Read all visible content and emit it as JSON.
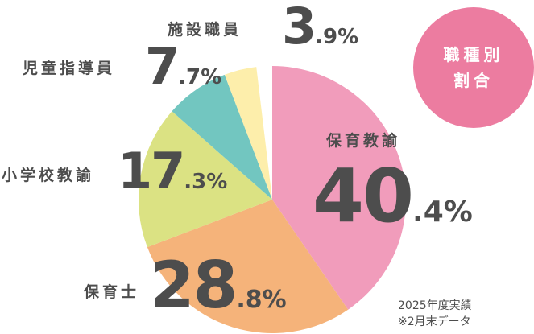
{
  "chart_data": {
    "type": "pie",
    "title": "職種別割合",
    "start": "top, clockwise",
    "slices": [
      {
        "name": "保育教諭",
        "value": 40.4,
        "color": "#f19cbb"
      },
      {
        "name": "保育士",
        "value": 28.8,
        "color": "#f5b37a"
      },
      {
        "name": "小学校教諭",
        "value": 17.3,
        "color": "#dbe283"
      },
      {
        "name": "児童指導員",
        "value": 7.7,
        "color": "#72c6c0"
      },
      {
        "name": "施設職員",
        "value": 3.9,
        "color": "#fdeeab"
      }
    ],
    "labels": [
      {
        "name": "保育教諭",
        "int": "40",
        "dec": ".4%"
      },
      {
        "name": "保育士",
        "int": "28",
        "dec": ".8%"
      },
      {
        "name": "小学校教諭",
        "int": "17",
        "dec": ".3%"
      },
      {
        "name": "児童指導員",
        "int": "7",
        "dec": ".7%"
      },
      {
        "name": "施設職員",
        "int": "3",
        "dec": ".9%"
      }
    ],
    "note_line1": "2025年度実績",
    "note_line2": "※2月末データ"
  },
  "badge": {
    "line1": "職種別",
    "line2": "割合",
    "color": "#ec7ca0"
  }
}
